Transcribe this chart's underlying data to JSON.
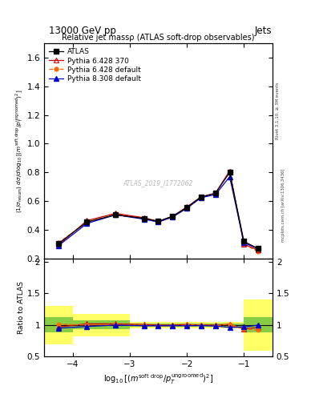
{
  "title_top": "13000 GeV pp",
  "title_right": "Jets",
  "plot_title": "Relative jet massρ (ATLAS soft-drop observables)",
  "watermark": "ATLAS_2019_I1772062",
  "right_label_top": "Rivet 3.1.10, ≥ 3M events",
  "right_label_bot": "mcplots.cern.ch [arXiv:1306.3436]",
  "xlim": [
    -4.5,
    -0.5
  ],
  "ylim_main": [
    0.2,
    1.7
  ],
  "ylim_ratio": [
    0.5,
    2.05
  ],
  "x_ticks": [
    -4,
    -3,
    -2,
    -1
  ],
  "x_data": [
    -4.25,
    -3.75,
    -3.25,
    -2.75,
    -2.5,
    -2.25,
    -2.0,
    -1.75,
    -1.5,
    -1.25,
    -1.0,
    -0.75
  ],
  "atlas_y": [
    0.305,
    0.455,
    0.505,
    0.48,
    0.46,
    0.495,
    0.555,
    0.63,
    0.655,
    0.8,
    0.32,
    0.27
  ],
  "pythia6_370_y": [
    0.295,
    0.465,
    0.515,
    0.485,
    0.46,
    0.495,
    0.56,
    0.63,
    0.655,
    0.81,
    0.3,
    0.26
  ],
  "pythia6_def_y": [
    0.31,
    0.455,
    0.51,
    0.48,
    0.455,
    0.49,
    0.555,
    0.63,
    0.65,
    0.81,
    0.3,
    0.25
  ],
  "pythia8_def_y": [
    0.29,
    0.445,
    0.505,
    0.475,
    0.455,
    0.49,
    0.55,
    0.625,
    0.645,
    0.77,
    0.31,
    0.27
  ],
  "ratio_p6_370": [
    0.97,
    1.02,
    1.02,
    1.01,
    1.0,
    1.0,
    1.01,
    1.0,
    1.0,
    1.013,
    0.938,
    0.963
  ],
  "ratio_p6_def": [
    1.016,
    1.0,
    1.01,
    1.0,
    0.989,
    0.99,
    1.0,
    1.0,
    0.992,
    1.013,
    0.938,
    0.926
  ],
  "ratio_p8_def": [
    0.951,
    0.978,
    1.0,
    0.99,
    0.989,
    0.99,
    0.99,
    0.992,
    0.985,
    0.963,
    0.969,
    1.0
  ],
  "band_x": [
    -4.5,
    -4.0,
    -3.5,
    -3.0,
    -2.5,
    -2.0,
    -1.5,
    -1.0,
    -0.5
  ],
  "yellow_lo": [
    0.7,
    0.82,
    0.82,
    0.95,
    0.95,
    0.95,
    0.95,
    0.6,
    0.6
  ],
  "yellow_hi": [
    1.3,
    1.18,
    1.18,
    1.05,
    1.05,
    1.05,
    1.05,
    1.4,
    1.4
  ],
  "green_lo": [
    0.88,
    0.93,
    0.93,
    0.97,
    0.97,
    0.97,
    0.97,
    0.88,
    0.88
  ],
  "green_hi": [
    1.12,
    1.07,
    1.07,
    1.03,
    1.03,
    1.03,
    1.03,
    1.12,
    1.12
  ],
  "color_atlas": "#000000",
  "color_p6_370": "#cc0000",
  "color_p6_def": "#ff6600",
  "color_p8_def": "#0000cc"
}
